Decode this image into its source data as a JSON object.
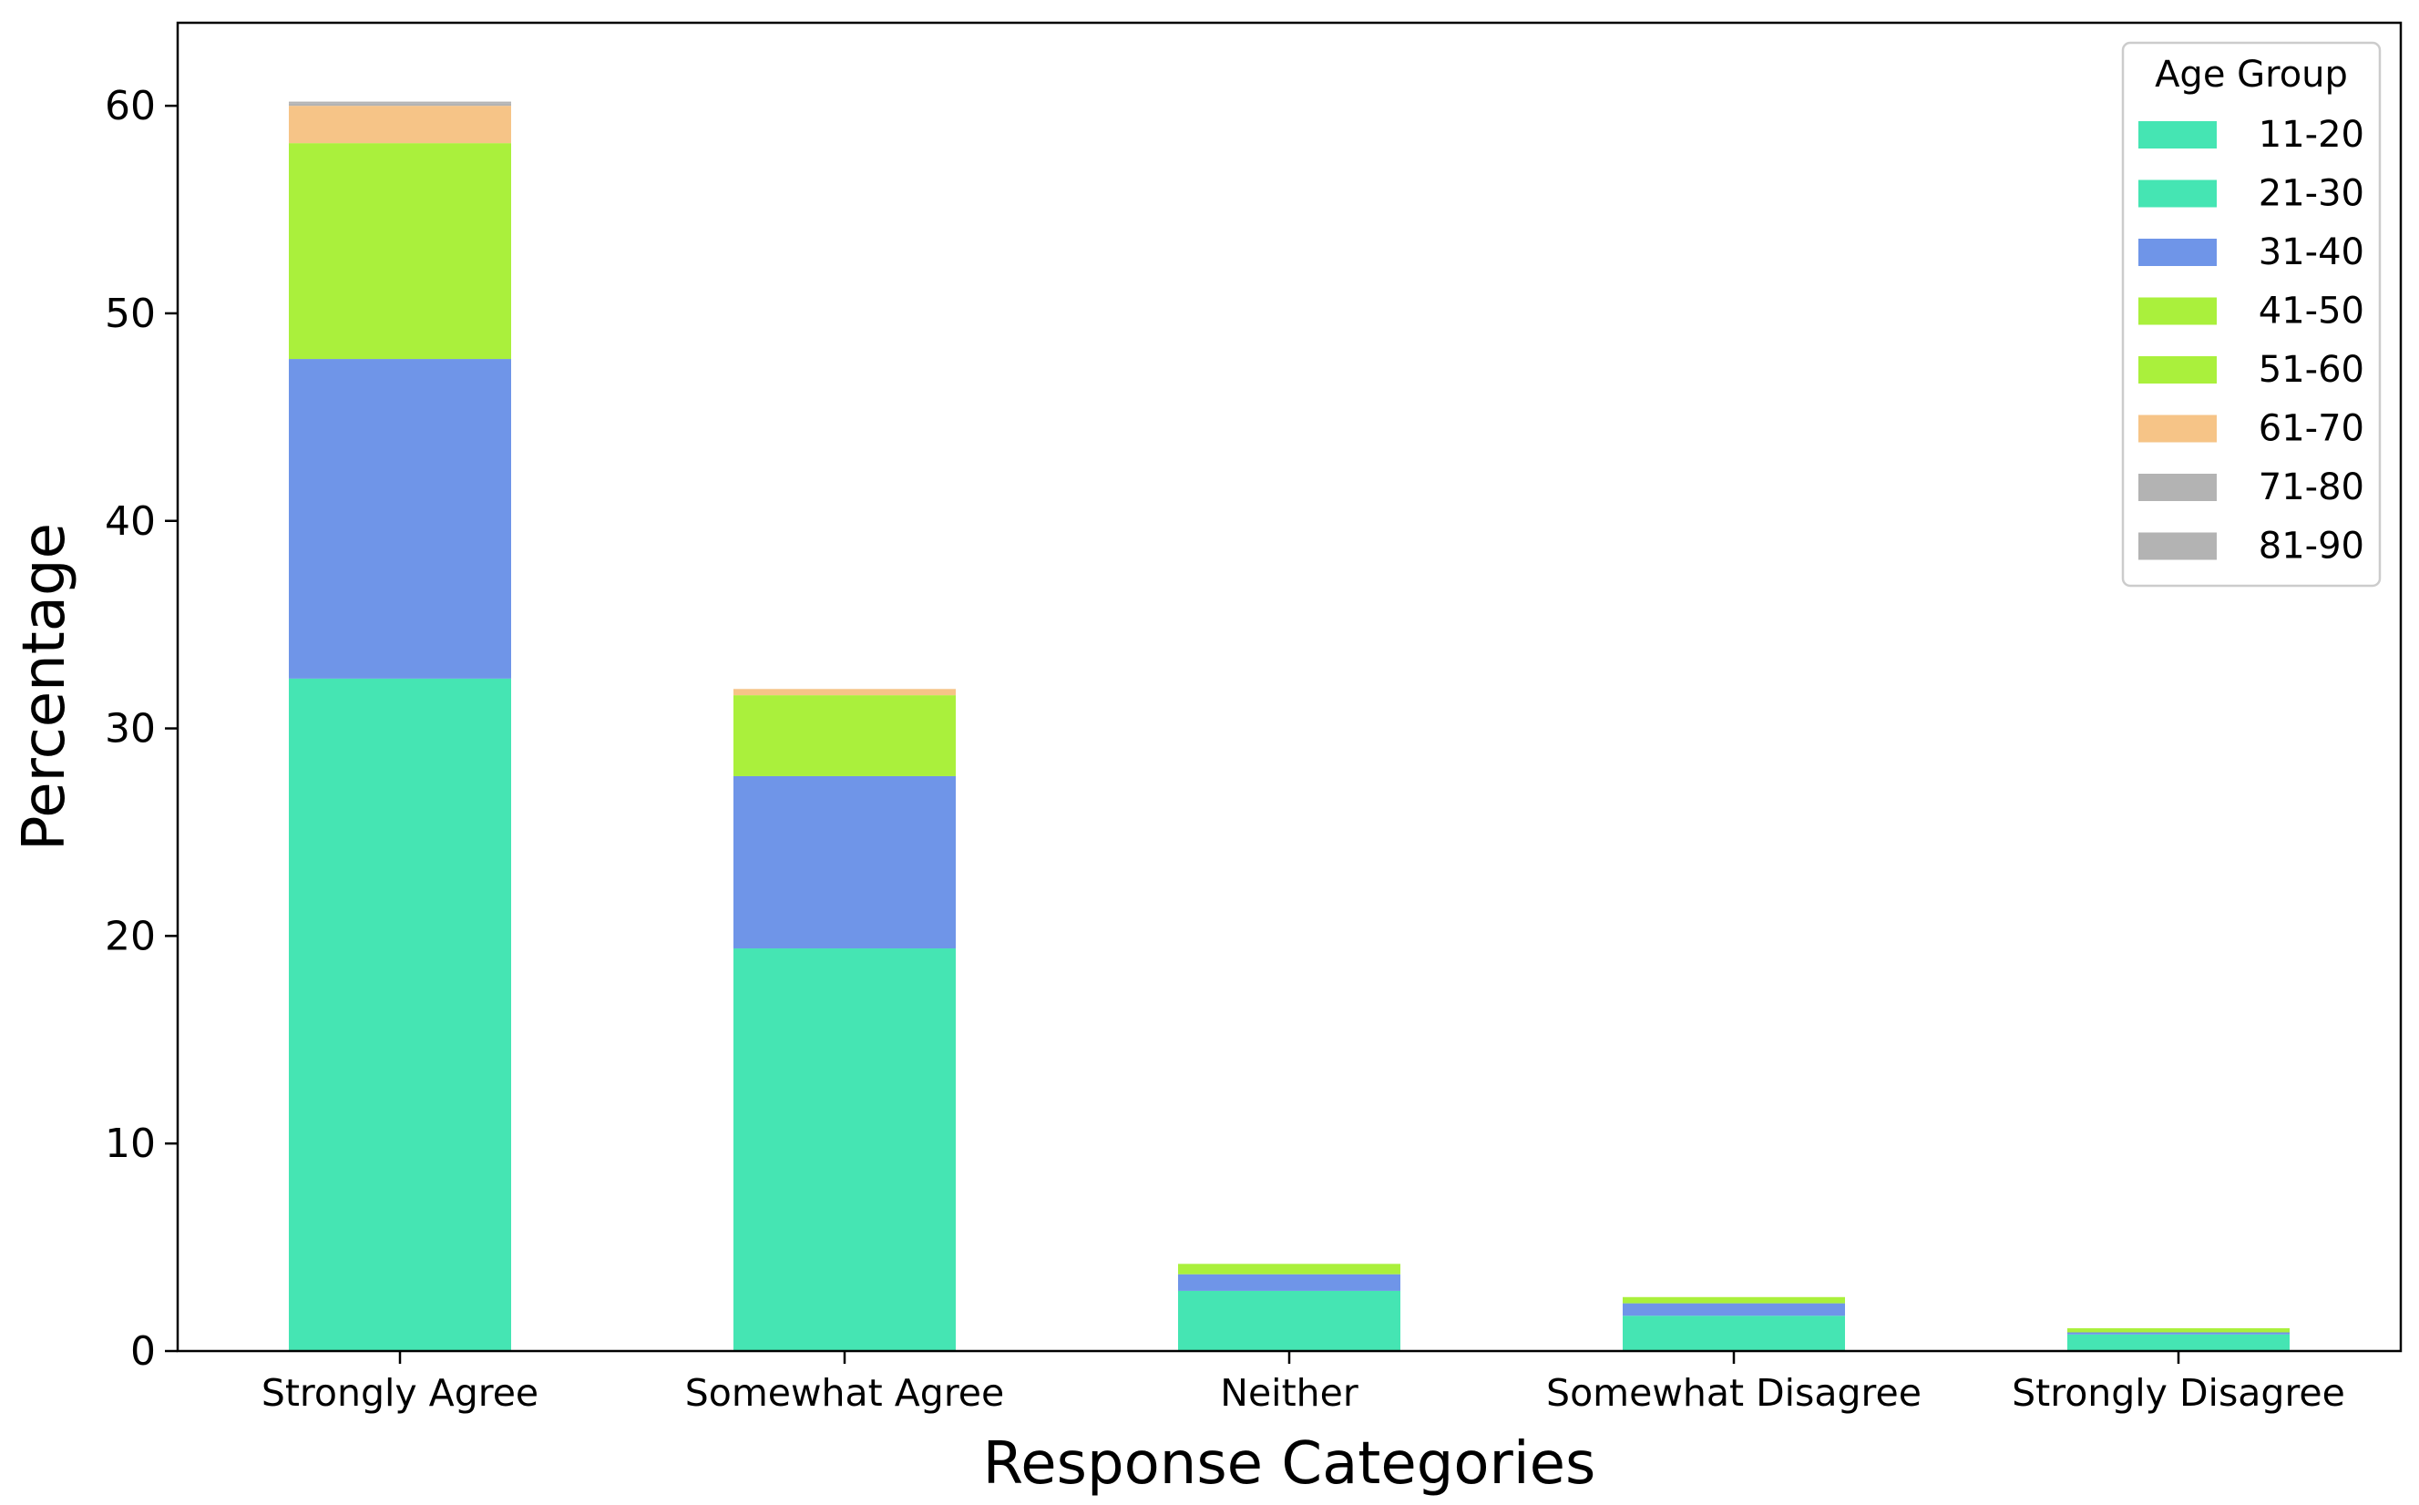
{
  "chart_data": {
    "type": "bar",
    "stacked": true,
    "title": "",
    "xlabel": "Response Categories",
    "ylabel": "Percentage",
    "ylim": [
      0,
      64
    ],
    "yticks": [
      0,
      10,
      20,
      30,
      40,
      50,
      60
    ],
    "grid": false,
    "legend_placement": "top-right",
    "legend_title": "Age Group",
    "categories": [
      "Strongly Agree",
      "Somewhat Agree",
      "Neither",
      "Somewhat Disagree",
      "Strongly Disagree"
    ],
    "series": [
      {
        "name": "11-20",
        "color": "#45e5b3",
        "values": [
          0.0,
          0.0,
          0.0,
          0.0,
          0.0
        ]
      },
      {
        "name": "21-30",
        "color": "#45e5b3",
        "values": [
          32.4,
          19.4,
          2.9,
          1.7,
          0.8
        ]
      },
      {
        "name": "31-40",
        "color": "#6f95e8",
        "values": [
          15.4,
          8.3,
          0.8,
          0.6,
          0.1
        ]
      },
      {
        "name": "41-50",
        "color": "#aaf03c",
        "values": [
          0.0,
          0.0,
          0.0,
          0.0,
          0.0
        ]
      },
      {
        "name": "51-60",
        "color": "#aaf03c",
        "values": [
          10.4,
          3.9,
          0.5,
          0.3,
          0.2
        ]
      },
      {
        "name": "61-70",
        "color": "#f6c487",
        "values": [
          1.8,
          0.3,
          0.0,
          0.0,
          0.0
        ]
      },
      {
        "name": "71-80",
        "color": "#b3b3b3",
        "values": [
          0.1,
          0.0,
          0.0,
          0.0,
          0.0
        ]
      },
      {
        "name": "81-90",
        "color": "#b3b3b3",
        "values": [
          0.1,
          0.0,
          0.0,
          0.0,
          0.0
        ]
      }
    ]
  }
}
